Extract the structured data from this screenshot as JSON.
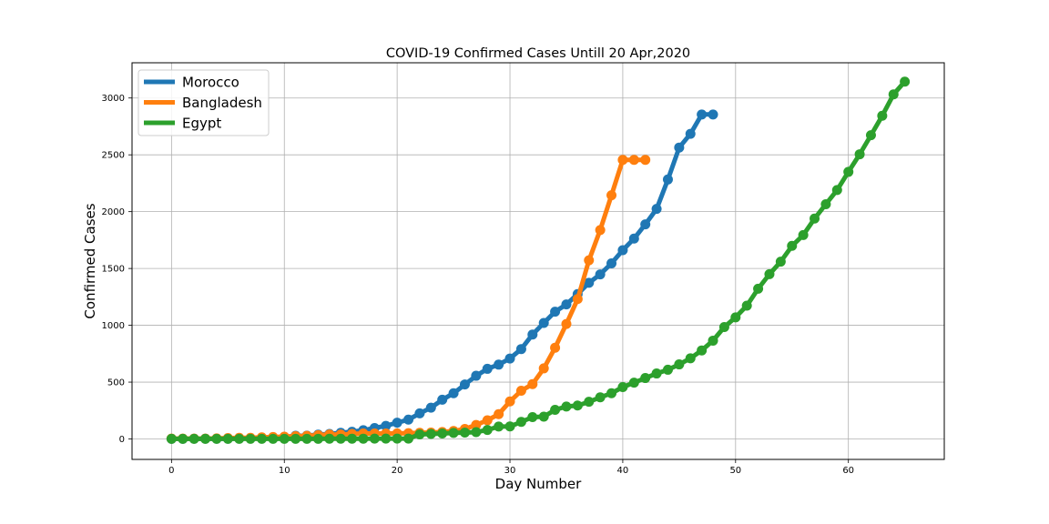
{
  "chart_data": {
    "type": "line",
    "title": "COVID-19 Confirmed Cases Untill 20 Apr,2020",
    "xlabel": "Day Number",
    "ylabel": "Confirmed Cases",
    "xlim": [
      -3.5,
      68.5
    ],
    "ylim": [
      -180,
      3310
    ],
    "xticks": [
      0,
      10,
      20,
      30,
      40,
      50,
      60
    ],
    "yticks": [
      0,
      500,
      1000,
      1500,
      2000,
      2500,
      3000
    ],
    "grid": true,
    "legend_position": "top-left",
    "series": [
      {
        "name": "Morocco",
        "color": "#1f77b4",
        "x": [
          0,
          1,
          2,
          3,
          4,
          5,
          6,
          7,
          8,
          9,
          10,
          11,
          12,
          13,
          14,
          15,
          16,
          17,
          18,
          19,
          20,
          21,
          22,
          23,
          24,
          25,
          26,
          27,
          28,
          29,
          30,
          31,
          32,
          33,
          34,
          35,
          36,
          37,
          38,
          39,
          40,
          41,
          42,
          43,
          44,
          45,
          46,
          47,
          48
        ],
        "y": [
          1,
          1,
          2,
          2,
          2,
          2,
          3,
          5,
          6,
          7,
          17,
          28,
          29,
          38,
          44,
          54,
          63,
          77,
          96,
          115,
          143,
          170,
          225,
          275,
          345,
          402,
          479,
          556,
          617,
          654,
          708,
          791,
          919,
          1021,
          1120,
          1184,
          1275,
          1374,
          1448,
          1545,
          1661,
          1763,
          1888,
          2024,
          2283,
          2564,
          2685,
          2855,
          2855
        ]
      },
      {
        "name": "Bangladesh",
        "color": "#ff7f0e",
        "x": [
          0,
          1,
          2,
          3,
          4,
          5,
          6,
          7,
          8,
          9,
          10,
          11,
          12,
          13,
          14,
          15,
          16,
          17,
          18,
          19,
          20,
          21,
          22,
          23,
          24,
          25,
          26,
          27,
          28,
          29,
          30,
          31,
          32,
          33,
          34,
          35,
          36,
          37,
          38,
          39,
          40,
          41,
          42
        ],
        "y": [
          3,
          3,
          3,
          3,
          5,
          8,
          10,
          10,
          14,
          17,
          20,
          24,
          27,
          33,
          39,
          39,
          44,
          48,
          48,
          48,
          49,
          51,
          54,
          56,
          61,
          70,
          88,
          123,
          164,
          218,
          330,
          424,
          482,
          621,
          803,
          1012,
          1231,
          1572,
          1838,
          2144,
          2456,
          2456,
          2456
        ]
      },
      {
        "name": "Egypt",
        "color": "#2ca02c",
        "x": [
          0,
          1,
          2,
          3,
          4,
          5,
          6,
          7,
          8,
          9,
          10,
          11,
          12,
          13,
          14,
          15,
          16,
          17,
          18,
          19,
          20,
          21,
          22,
          23,
          24,
          25,
          26,
          27,
          28,
          29,
          30,
          31,
          32,
          33,
          34,
          35,
          36,
          37,
          38,
          39,
          40,
          41,
          42,
          43,
          44,
          45,
          46,
          47,
          48,
          49,
          50,
          51,
          52,
          53,
          54,
          55,
          56,
          57,
          58,
          59,
          60,
          61,
          62,
          63,
          64,
          65
        ],
        "y": [
          1,
          1,
          1,
          1,
          1,
          1,
          1,
          1,
          1,
          1,
          1,
          1,
          1,
          1,
          2,
          2,
          2,
          2,
          3,
          3,
          3,
          3,
          40,
          44,
          48,
          53,
          56,
          60,
          79,
          109,
          110,
          150,
          192,
          196,
          256,
          285,
          294,
          327,
          366,
          402,
          456,
          495,
          536,
          576,
          609,
          656,
          710,
          779,
          865,
          985,
          1070,
          1173,
          1322,
          1450,
          1560,
          1699,
          1794,
          1939,
          2065,
          2190,
          2350,
          2505,
          2673,
          2844,
          3032,
          3144
        ]
      }
    ]
  }
}
